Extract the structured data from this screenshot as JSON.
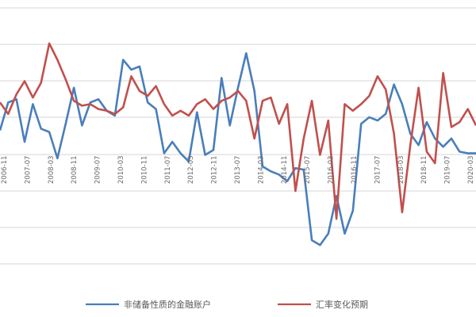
{
  "chart_data": {
    "type": "line",
    "x_ticks": [
      "2006-11",
      "2007-07",
      "2008-03",
      "2008-11",
      "2009-07",
      "2010-03",
      "2010-11",
      "2011-07",
      "2012-03",
      "2012-11",
      "2013-07",
      "2014-03",
      "2014-11",
      "2015-07",
      "2016-03",
      "2016-11",
      "2017-07",
      "2018-03",
      "2018-11",
      "2019-07",
      "2020-03"
    ],
    "grid": true,
    "legend_position": "bottom",
    "series": [
      {
        "name": "非储备性质的金融账户",
        "color": "#4a7ebb",
        "values": [
          0.45,
          0.62,
          0.64,
          0.38,
          0.61,
          0.46,
          0.44,
          0.28,
          0.49,
          0.71,
          0.48,
          0.62,
          0.64,
          0.57,
          0.54,
          0.88,
          0.82,
          0.84,
          0.62,
          0.58,
          0.31,
          0.38,
          0.31,
          0.26,
          0.56,
          0.3,
          0.33,
          0.77,
          0.48,
          0.71,
          0.92,
          0.69,
          0.23,
          0.2,
          0.18,
          0.14,
          0.22,
          0.21,
          -0.22,
          -0.25,
          -0.18,
          0.05,
          -0.18,
          -0.04,
          0.49,
          0.53,
          0.51,
          0.55,
          0.73,
          0.61,
          0.43,
          0.36,
          0.5,
          0.4,
          0.35,
          0.4,
          0.32,
          0.31,
          0.31
        ]
      },
      {
        "name": "汇率变化预期",
        "color": "#c0504d",
        "values": [
          0.62,
          0.55,
          0.67,
          0.75,
          0.65,
          0.74,
          0.98,
          0.88,
          0.76,
          0.63,
          0.6,
          0.61,
          0.58,
          0.57,
          0.55,
          0.59,
          0.78,
          0.69,
          0.66,
          0.72,
          0.61,
          0.54,
          0.57,
          0.54,
          0.61,
          0.64,
          0.58,
          0.63,
          0.65,
          0.69,
          0.63,
          0.4,
          0.63,
          0.65,
          0.49,
          0.61,
          0.08,
          0.4,
          0.63,
          0.3,
          0.51,
          -0.09,
          0.61,
          0.57,
          0.61,
          0.66,
          0.78,
          0.7,
          0.43,
          -0.05,
          0.36,
          0.71,
          0.32,
          0.25,
          0.8,
          0.47,
          0.5,
          0.58,
          0.48
        ]
      }
    ]
  }
}
